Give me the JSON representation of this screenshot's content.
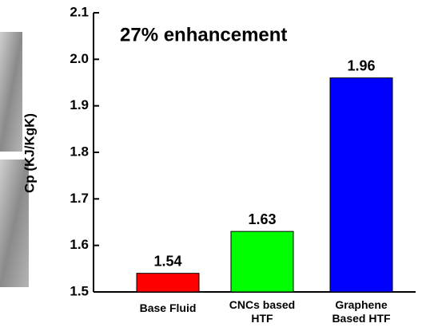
{
  "chart_data": {
    "type": "bar",
    "categories": [
      "Base Fluid",
      "CNCs based HTF",
      "Graphene Based HTF"
    ],
    "values": [
      1.54,
      1.63,
      1.96
    ],
    "colors": [
      "#ff0000",
      "#00ff00",
      "#0000ff"
    ],
    "ylabel": "Cp (KJ/KgK)",
    "annotation": "27% enhancement",
    "annotation_color": "#1a1aff",
    "ylim": [
      1.5,
      2.1
    ],
    "yticks": [
      1.5,
      1.6,
      1.7,
      1.8,
      1.9,
      {
        "value": 2,
        "label": "2.0"
      },
      2.1
    ]
  }
}
